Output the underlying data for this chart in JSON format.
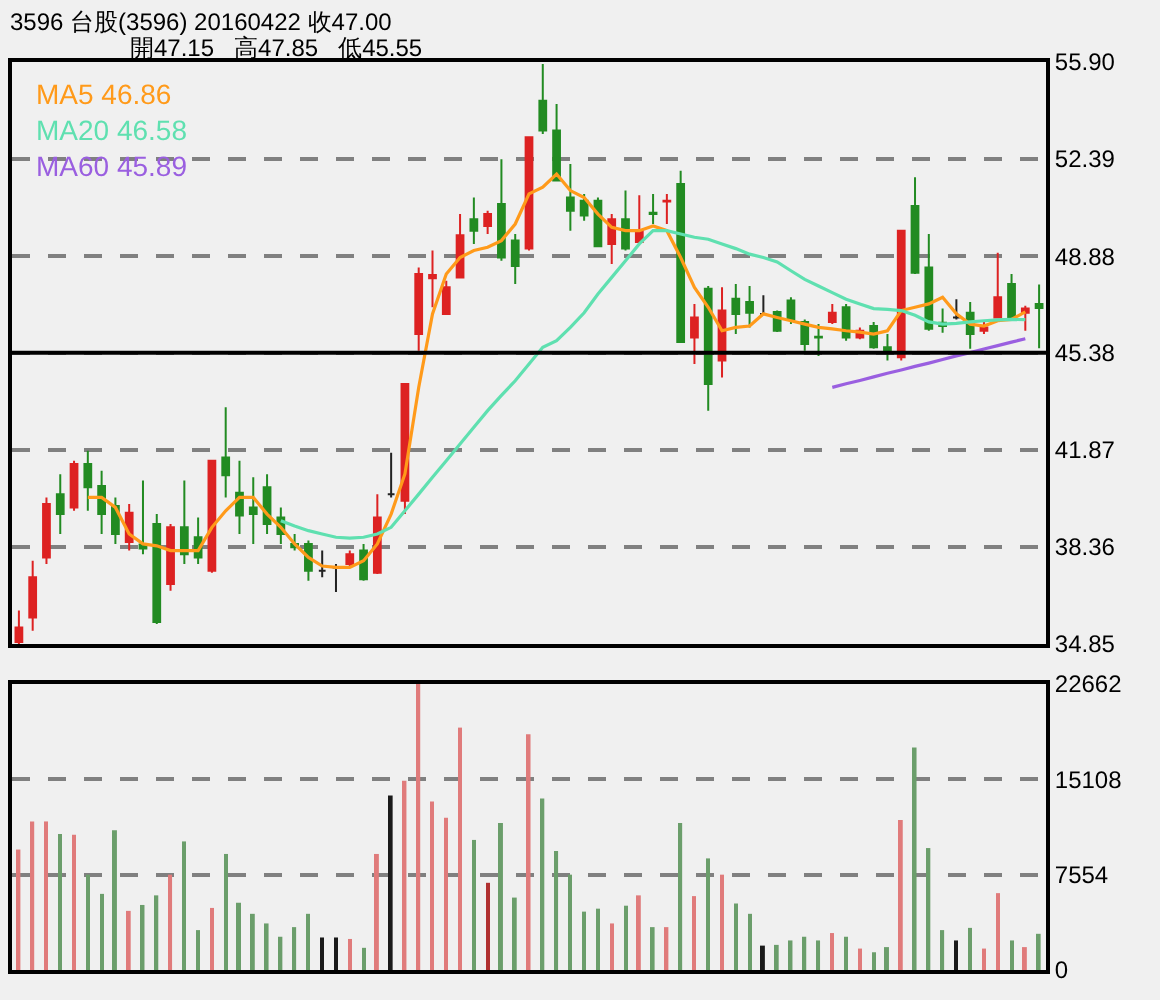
{
  "chart_data": [
    {
      "type": "candlestick",
      "title": "3596 台股(3596) 20160422 收47.00",
      "subtitle": "開47.15 高47.85 低45.55",
      "categories": [
        null,
        null,
        null,
        null,
        null,
        null,
        null,
        null,
        null,
        null,
        null,
        null,
        null,
        null,
        null,
        null,
        null,
        null,
        null,
        null,
        null,
        null,
        null,
        null,
        null,
        null,
        null,
        null,
        null,
        null,
        null,
        null,
        null,
        null,
        null,
        null,
        null,
        null,
        null,
        null,
        null,
        null,
        null,
        null,
        null,
        null,
        null,
        null,
        null,
        null,
        null,
        null,
        null,
        null,
        null,
        null,
        null,
        null,
        null,
        null,
        null,
        null,
        null,
        null,
        null,
        null,
        null,
        null,
        null,
        null,
        null,
        null,
        null,
        null,
        null
      ],
      "ohlc": [
        [
          34.92,
          36.06,
          34.85,
          35.45
        ],
        [
          35.81,
          37.86,
          35.33,
          37.26
        ],
        [
          37.98,
          40.15,
          37.74,
          39.91
        ],
        [
          40.27,
          40.99,
          38.83,
          39.55
        ],
        [
          39.79,
          41.48,
          39.67,
          41.36
        ],
        [
          41.36,
          41.84,
          39.67,
          40.52
        ],
        [
          40.56,
          41.12,
          38.83,
          39.55
        ],
        [
          39.84,
          40.15,
          38.47,
          38.83
        ],
        [
          38.54,
          39.91,
          38.23,
          39.6
        ],
        [
          38.45,
          40.76,
          38.1,
          38.3
        ],
        [
          39.19,
          39.55,
          35.57,
          35.65
        ],
        [
          37.02,
          39.19,
          36.78,
          39.07
        ],
        [
          39.07,
          40.76,
          37.74,
          38.1
        ],
        [
          38.71,
          39.43,
          37.74,
          37.98
        ],
        [
          37.5,
          41.48,
          37.43,
          41.48
        ],
        [
          41.6,
          43.41,
          40.15,
          40.95
        ],
        [
          40.32,
          41.48,
          38.83,
          39.5
        ],
        [
          39.79,
          40.88,
          38.47,
          39.55
        ],
        [
          40.52,
          40.99,
          38.83,
          39.19
        ],
        [
          39.43,
          39.79,
          38.47,
          38.83
        ],
        [
          38.47,
          38.83,
          38.23,
          38.35
        ],
        [
          38.47,
          38.59,
          37.14,
          37.5
        ],
        [
          37.5,
          38.23,
          37.26,
          37.5
        ],
        [
          37.62,
          37.74,
          36.73,
          37.62
        ],
        [
          37.74,
          38.23,
          37.62,
          38.1
        ],
        [
          38.23,
          38.47,
          37.14,
          37.19
        ],
        [
          37.43,
          40.27,
          37.38,
          39.43
        ],
        [
          40.27,
          41.77,
          40.15,
          40.27
        ],
        [
          40.03,
          44.25,
          39.55,
          44.25
        ],
        [
          46.06,
          48.47,
          45.46,
          48.23
        ],
        [
          48.08,
          49.08,
          47.03,
          48.2
        ],
        [
          46.79,
          47.99,
          46.79,
          47.75
        ],
        [
          48.11,
          50.4,
          48.11,
          49.63
        ],
        [
          50.21,
          51.0,
          49.32,
          49.8
        ],
        [
          49.97,
          50.52,
          49.68,
          50.4
        ],
        [
          50.76,
          52.38,
          48.71,
          48.83
        ],
        [
          49.44,
          49.68,
          47.87,
          48.52
        ],
        [
          49.15,
          53.18,
          49.08,
          53.18
        ],
        [
          54.5,
          55.83,
          53.3,
          53.42
        ],
        [
          53.42,
          54.38,
          51.61,
          51.61
        ],
        [
          51.0,
          52.21,
          49.8,
          50.52
        ],
        [
          50.88,
          51.13,
          50.16,
          50.35
        ],
        [
          50.88,
          51.0,
          49.2,
          49.24
        ],
        [
          49.32,
          50.4,
          48.59,
          50.21
        ],
        [
          50.21,
          51.25,
          49.08,
          49.15
        ],
        [
          49.39,
          51.08,
          49.32,
          49.8
        ],
        [
          50.45,
          51.13,
          50.04,
          50.4
        ],
        [
          50.85,
          51.13,
          50.04,
          50.88
        ],
        [
          51.49,
          51.97,
          45.77,
          45.77
        ],
        [
          45.94,
          47.15,
          44.98,
          46.66
        ],
        [
          47.7,
          47.8,
          43.29,
          44.25
        ],
        [
          45.1,
          47.75,
          44.49,
          46.91
        ],
        [
          47.34,
          47.87,
          46.06,
          46.79
        ],
        [
          47.22,
          47.8,
          46.3,
          46.83
        ],
        [
          46.79,
          47.46,
          46.79,
          46.79
        ],
        [
          46.86,
          46.91,
          46.13,
          46.18
        ],
        [
          47.27,
          47.39,
          46.42,
          46.59
        ],
        [
          46.5,
          46.59,
          45.46,
          45.7
        ],
        [
          45.96,
          46.42,
          45.27,
          45.94
        ],
        [
          46.5,
          47.15,
          46.42,
          46.83
        ],
        [
          47.03,
          47.15,
          45.82,
          45.94
        ],
        [
          45.94,
          46.3,
          45.87,
          46.18
        ],
        [
          46.35,
          46.5,
          45.53,
          45.58
        ],
        [
          45.58,
          46.06,
          45.1,
          45.46
        ],
        [
          45.22,
          49.8,
          45.1,
          49.8
        ],
        [
          50.69,
          51.73,
          48.23,
          48.28
        ],
        [
          48.47,
          49.68,
          46.18,
          46.25
        ],
        [
          46.47,
          46.98,
          46.11,
          46.35
        ],
        [
          46.66,
          47.32,
          46.59,
          46.66
        ],
        [
          46.83,
          47.22,
          45.53,
          46.06
        ],
        [
          46.18,
          46.54,
          46.06,
          46.3
        ],
        [
          46.66,
          49.0,
          46.66,
          47.39
        ],
        [
          47.87,
          48.23,
          46.54,
          46.66
        ],
        [
          46.83,
          47.08,
          46.18,
          46.98
        ],
        [
          47.15,
          47.85,
          45.55,
          47.0
        ]
      ],
      "colors": [
        "#dd2222",
        "#dd2222",
        "#dd2222",
        "#228b22",
        "#dd2222",
        "#228b22",
        "#228b22",
        "#228b22",
        "#dd2222",
        "#228b22",
        "#228b22",
        "#dd2222",
        "#228b22",
        "#228b22",
        "#dd2222",
        "#228b22",
        "#228b22",
        "#228b22",
        "#228b22",
        "#228b22",
        "#228b22",
        "#228b22",
        "#222222",
        "#222222",
        "#dd2222",
        "#228b22",
        "#dd2222",
        "#222222",
        "#dd2222",
        "#dd2222",
        "#dd2222",
        "#dd2222",
        "#dd2222",
        "#228b22",
        "#dd2222",
        "#228b22",
        "#228b22",
        "#dd2222",
        "#228b22",
        "#228b22",
        "#228b22",
        "#228b22",
        "#228b22",
        "#dd2222",
        "#228b22",
        "#dd2222",
        "#228b22",
        "#dd2222",
        "#228b22",
        "#dd2222",
        "#228b22",
        "#dd2222",
        "#228b22",
        "#228b22",
        "#222222",
        "#228b22",
        "#228b22",
        "#228b22",
        "#228b22",
        "#dd2222",
        "#228b22",
        "#dd2222",
        "#228b22",
        "#228b22",
        "#dd2222",
        "#228b22",
        "#228b22",
        "#228b22",
        "#222222",
        "#228b22",
        "#dd2222",
        "#dd2222",
        "#228b22",
        "#dd2222",
        "#228b22"
      ],
      "series": [
        {
          "type": "line",
          "name": "MA5 46.86",
          "color": "#ff9a1a",
          "values": [
            null,
            null,
            null,
            null,
            null,
            40.15,
            40.15,
            39.79,
            38.83,
            38.47,
            38.4,
            38.23,
            38.23,
            38.23,
            39.07,
            39.67,
            40.15,
            40.15,
            39.55,
            39.07,
            38.47,
            37.98,
            37.67,
            37.62,
            37.62,
            37.86,
            38.47,
            39.55,
            41.0,
            44.13,
            46.79,
            48.23,
            48.83,
            49.08,
            49.2,
            49.44,
            50.04,
            51.13,
            51.37,
            51.85,
            51.25,
            51.0,
            50.4,
            49.92,
            49.8,
            49.8,
            49.97,
            49.8,
            48.83,
            47.75,
            47.03,
            46.18,
            46.3,
            46.35,
            46.79,
            46.66,
            46.54,
            46.42,
            46.3,
            46.25,
            46.18,
            46.13,
            46.06,
            46.18,
            46.91,
            47.03,
            47.15,
            47.39,
            46.79,
            46.42,
            46.35,
            46.54,
            46.59,
            46.86,
            null
          ]
        },
        {
          "type": "line",
          "name": "MA20 46.58",
          "color": "#5fe0b0",
          "values": [
            null,
            null,
            null,
            null,
            null,
            null,
            null,
            null,
            null,
            null,
            null,
            null,
            null,
            null,
            null,
            null,
            null,
            null,
            null,
            39.31,
            39.12,
            38.95,
            38.83,
            38.71,
            38.68,
            38.71,
            38.83,
            39.07,
            39.67,
            40.27,
            40.88,
            41.48,
            42.08,
            42.69,
            43.29,
            43.84,
            44.37,
            44.98,
            45.58,
            45.82,
            46.3,
            46.83,
            47.51,
            48.11,
            48.71,
            49.32,
            49.8,
            49.8,
            49.68,
            49.56,
            49.49,
            49.32,
            49.15,
            48.95,
            48.83,
            48.67,
            48.35,
            48.04,
            47.8,
            47.56,
            47.32,
            47.15,
            46.98,
            46.95,
            46.91,
            46.74,
            46.5,
            46.42,
            46.45,
            46.5,
            46.54,
            46.57,
            46.59,
            46.58,
            null
          ]
        },
        {
          "type": "line",
          "name": "MA60 45.89",
          "color": "#9a5fe0",
          "values": [
            null,
            null,
            null,
            null,
            null,
            null,
            null,
            null,
            null,
            null,
            null,
            null,
            null,
            null,
            null,
            null,
            null,
            null,
            null,
            null,
            null,
            null,
            null,
            null,
            null,
            null,
            null,
            null,
            null,
            null,
            null,
            null,
            null,
            null,
            null,
            null,
            null,
            null,
            null,
            null,
            null,
            null,
            null,
            null,
            null,
            null,
            null,
            null,
            null,
            null,
            null,
            null,
            null,
            null,
            null,
            null,
            null,
            null,
            null,
            44.13,
            44.26,
            44.38,
            44.51,
            44.64,
            44.76,
            44.89,
            45.01,
            45.14,
            45.27,
            45.39,
            45.52,
            45.64,
            45.77,
            45.89,
            null
          ]
        }
      ],
      "ylim": [
        34.85,
        55.9
      ],
      "yticks": [
        34.85,
        38.36,
        41.87,
        45.38,
        48.88,
        52.39,
        {
          "value": 55.9,
          "label": "55.90"
        }
      ],
      "ref_lines": [
        {
          "axis": "y",
          "value": 45.38,
          "color": "#000000",
          "line_style": "solid"
        }
      ],
      "grid": "y",
      "legend": "top left",
      "tick_labels": "y"
    },
    {
      "type": "bar",
      "categories": [
        null,
        null,
        null,
        null,
        null,
        null,
        null,
        null,
        null,
        null,
        null,
        null,
        null,
        null,
        null,
        null,
        null,
        null,
        null,
        null,
        null,
        null,
        null,
        null,
        null,
        null,
        null,
        null,
        null,
        null,
        null,
        null,
        null,
        null,
        null,
        null,
        null,
        null,
        null,
        null,
        null,
        null,
        null,
        null,
        null,
        null,
        null,
        null,
        null,
        null,
        null,
        null,
        null,
        null,
        null,
        null,
        null,
        null,
        null,
        null,
        null,
        null,
        null,
        null,
        null,
        null,
        null,
        null,
        null,
        null,
        null,
        null,
        null,
        null,
        null
      ],
      "values": [
        9545,
        11771,
        11771,
        10775,
        10716,
        7554,
        6032,
        11068,
        4685,
        5153,
        5915,
        7554,
        10189,
        3162,
        4919,
        9194,
        5329,
        4451,
        3689,
        2635,
        3397,
        4451,
        2577,
        2577,
        2460,
        1757,
        9194,
        13820,
        14991,
        22662,
        13352,
        12063,
        19208,
        10307,
        6910,
        11653,
        5739,
        18681,
        13586,
        9428,
        7554,
        4626,
        4860,
        3689,
        5095,
        5915,
        3397,
        3397,
        11653,
        5856,
        8843,
        7554,
        5270,
        4451,
        1932,
        1991,
        2342,
        2635,
        2342,
        2928,
        2635,
        1698,
        1405,
        1815,
        11888,
        17627,
        9662,
        3162,
        2342,
        3338,
        1698,
        6090,
        2342,
        1815,
        2869
      ],
      "colors": [
        "#e07b7b",
        "#e07b7b",
        "#e07b7b",
        "#6b9e6b",
        "#e07b7b",
        "#6b9e6b",
        "#6b9e6b",
        "#6b9e6b",
        "#e07b7b",
        "#6b9e6b",
        "#6b9e6b",
        "#e07b7b",
        "#6b9e6b",
        "#6b9e6b",
        "#e07b7b",
        "#6b9e6b",
        "#6b9e6b",
        "#6b9e6b",
        "#6b9e6b",
        "#6b9e6b",
        "#6b9e6b",
        "#6b9e6b",
        "#1a1a1a",
        "#1a1a1a",
        "#e07b7b",
        "#6b9e6b",
        "#e07b7b",
        "#1a1a1a",
        "#e07b7b",
        "#e07b7b",
        "#e07b7b",
        "#e07b7b",
        "#e07b7b",
        "#6b9e6b",
        "#b03030",
        "#6b9e6b",
        "#6b9e6b",
        "#e07b7b",
        "#6b9e6b",
        "#6b9e6b",
        "#6b9e6b",
        "#6b9e6b",
        "#6b9e6b",
        "#e07b7b",
        "#6b9e6b",
        "#e07b7b",
        "#6b9e6b",
        "#e07b7b",
        "#6b9e6b",
        "#e07b7b",
        "#6b9e6b",
        "#e07b7b",
        "#6b9e6b",
        "#6b9e6b",
        "#1a1a1a",
        "#6b9e6b",
        "#6b9e6b",
        "#6b9e6b",
        "#6b9e6b",
        "#e07b7b",
        "#6b9e6b",
        "#e07b7b",
        "#6b9e6b",
        "#6b9e6b",
        "#e07b7b",
        "#6b9e6b",
        "#6b9e6b",
        "#6b9e6b",
        "#1a1a1a",
        "#6b9e6b",
        "#e07b7b",
        "#e07b7b",
        "#6b9e6b",
        "#e07b7b",
        "#6b9e6b"
      ],
      "ylim": [
        0,
        22662
      ],
      "yticks": [
        0,
        7554,
        15108,
        22662
      ],
      "grid": "y",
      "tick_labels": "y"
    }
  ]
}
